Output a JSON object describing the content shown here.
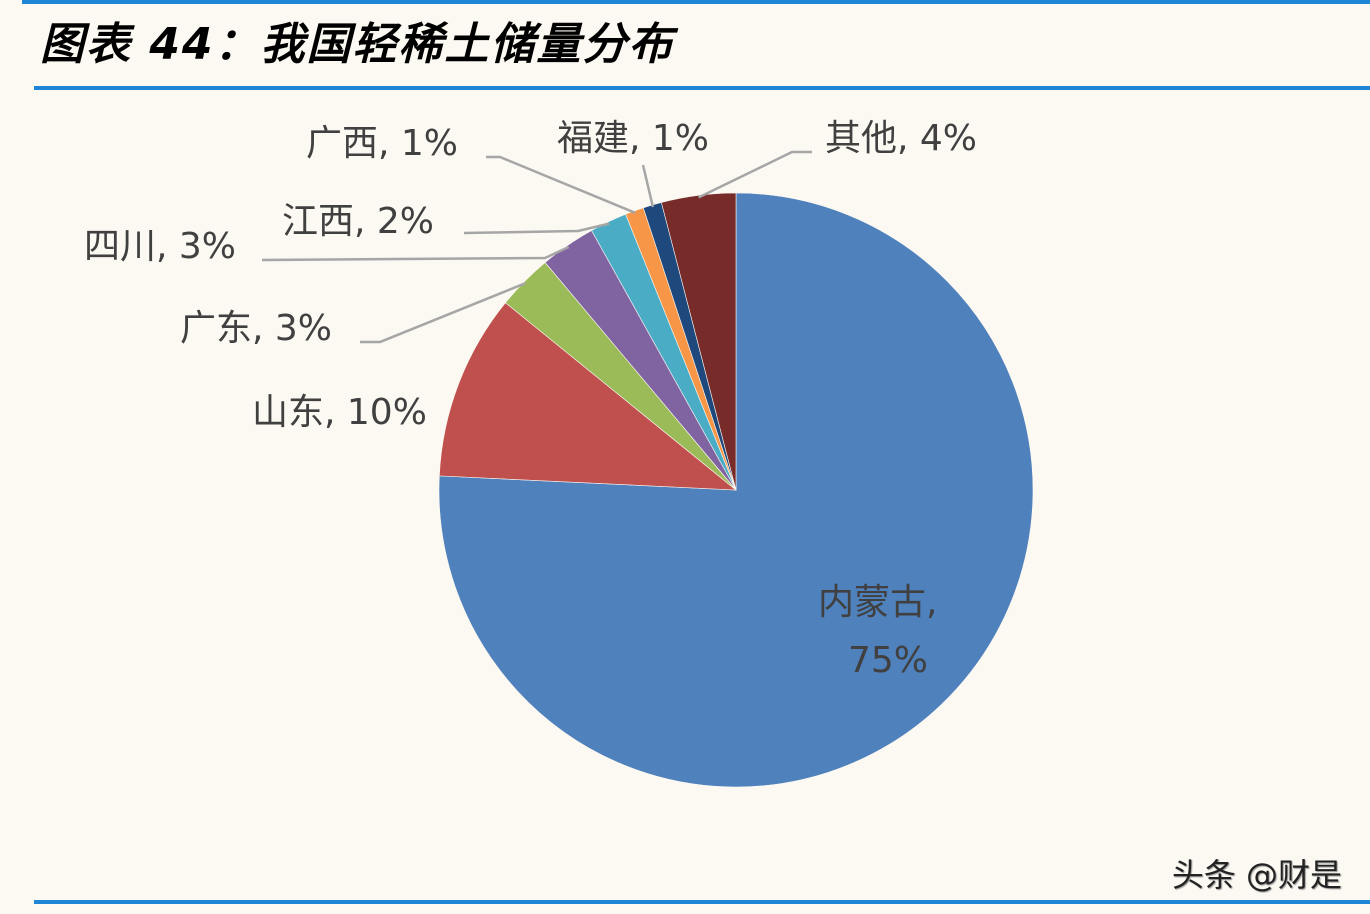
{
  "header": {
    "title": "图表 44：我国轻稀土储量分布"
  },
  "watermark": "头条 @财是",
  "colors": {
    "rule": "#1f86d6",
    "background": "#fcf8f2",
    "leader_line": "#a6a6a6"
  },
  "chart_data": {
    "type": "pie",
    "title": "我国轻稀土储量分布",
    "unit": "%",
    "start_angle_deg": 0,
    "direction": "clockwise",
    "slices": [
      {
        "label": "内蒙古",
        "value": 75,
        "color": "#4f81bd",
        "display": "内蒙古,",
        "display2": "75%"
      },
      {
        "label": "山东",
        "value": 10,
        "color": "#c0504d",
        "display": "山东, 10%"
      },
      {
        "label": "广东",
        "value": 3,
        "color": "#9bbb59",
        "display": "广东, 3%"
      },
      {
        "label": "四川",
        "value": 3,
        "color": "#8064a2",
        "display": "四川, 3%"
      },
      {
        "label": "江西",
        "value": 2,
        "color": "#4bacc6",
        "display": "江西, 2%"
      },
      {
        "label": "广西",
        "value": 1,
        "color": "#f79646",
        "display": "广西, 1%"
      },
      {
        "label": "福建",
        "value": 1,
        "color": "#1f497d",
        "display": "福建, 1%"
      },
      {
        "label": "其他",
        "value": 4,
        "color": "#772c2a",
        "display": "其他, 4%"
      }
    ],
    "legend": "none",
    "data_labels": "category, percent (outside with leader lines; 内蒙古 inside)"
  }
}
